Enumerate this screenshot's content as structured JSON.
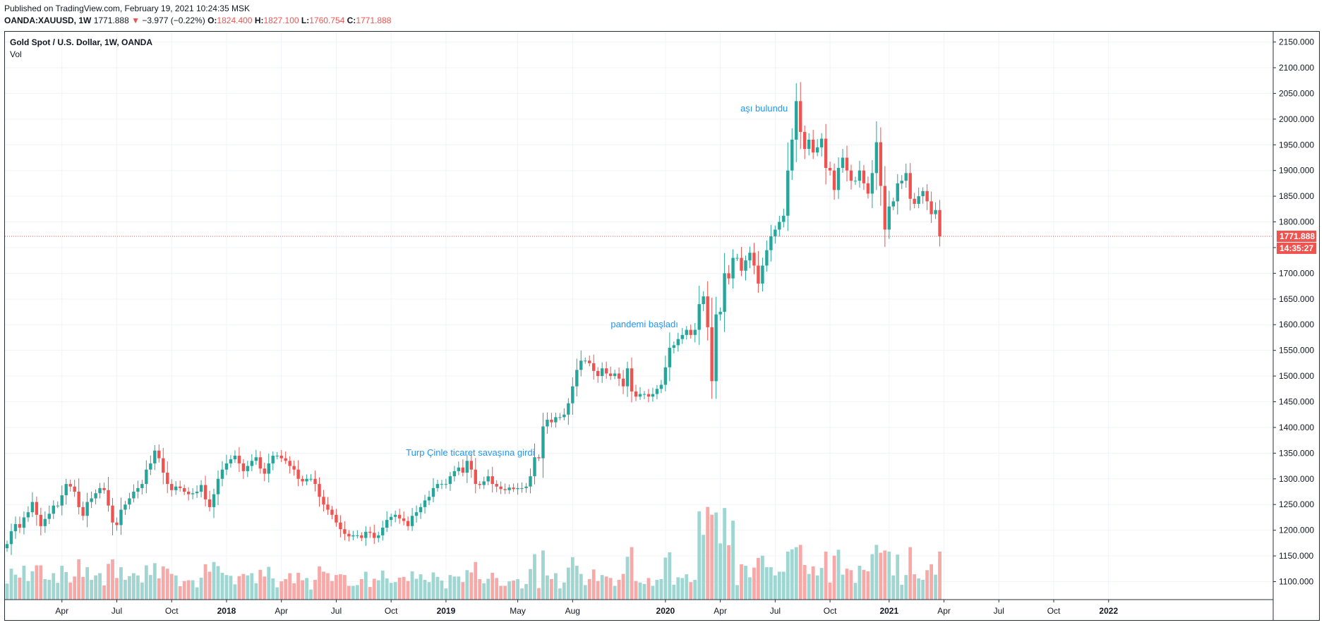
{
  "header": {
    "published": "Published on TradingView.com, February 19, 2021 10:24:35 MSK",
    "symbol": "OANDA:XAUUSD, 1W",
    "last": "1771.888",
    "change": "−3.977 (−0.22%)",
    "o_label": "O:",
    "o_value": "1824.400",
    "h_label": "H:",
    "h_value": "1827.100",
    "l_label": "L:",
    "l_value": "1760.754",
    "c_label": "C:",
    "c_value": "1771.888"
  },
  "legend": {
    "title": "Gold Spot / U.S. Dollar, 1W, OANDA",
    "indicator": "Vol"
  },
  "chart_data": {
    "type": "candlestick",
    "timeframe": "1W",
    "ylim": [
      1065,
      2170
    ],
    "y_ticks": [
      1100,
      1150,
      1200,
      1250,
      1300,
      1350,
      1400,
      1450,
      1500,
      1550,
      1600,
      1650,
      1700,
      1750,
      1800,
      1850,
      1900,
      1950,
      2000,
      2050,
      2100,
      2150
    ],
    "y_tick_labels": [
      "1100.000",
      "1150.000",
      "1200.000",
      "1250.000",
      "1300.000",
      "1350.000",
      "1400.000",
      "1450.000",
      "1500.000",
      "1550.000",
      "1600.000",
      "1650.000",
      "1700.000",
      "1750.000",
      "1800.000",
      "1850.000",
      "1900.000",
      "1950.000",
      "2000.000",
      "2050.000",
      "2100.000",
      "2150.000"
    ],
    "x_ticks": [
      {
        "label": "Apr",
        "week": 13,
        "bold": false
      },
      {
        "label": "Jul",
        "week": 26,
        "bold": false
      },
      {
        "label": "Oct",
        "week": 39,
        "bold": false
      },
      {
        "label": "2018",
        "week": 52,
        "bold": true
      },
      {
        "label": "Apr",
        "week": 65,
        "bold": false
      },
      {
        "label": "Jul",
        "week": 78,
        "bold": false
      },
      {
        "label": "Oct",
        "week": 91,
        "bold": false
      },
      {
        "label": "2019",
        "week": 104,
        "bold": true
      },
      {
        "label": "May",
        "week": 121,
        "bold": false
      },
      {
        "label": "Aug",
        "week": 134,
        "bold": false
      },
      {
        "label": "2020",
        "week": 156,
        "bold": true
      },
      {
        "label": "Apr",
        "week": 169,
        "bold": false
      },
      {
        "label": "Jul",
        "week": 182,
        "bold": false
      },
      {
        "label": "Oct",
        "week": 195,
        "bold": false
      },
      {
        "label": "2021",
        "week": 209,
        "bold": true
      },
      {
        "label": "Apr",
        "week": 222,
        "bold": false
      },
      {
        "label": "Jul",
        "week": 235,
        "bold": false
      },
      {
        "label": "Oct",
        "week": 248,
        "bold": false
      },
      {
        "label": "2022",
        "week": 261,
        "bold": true
      }
    ],
    "closes": [
      1173,
      1198,
      1212,
      1205,
      1225,
      1235,
      1255,
      1230,
      1208,
      1222,
      1232,
      1248,
      1248,
      1268,
      1290,
      1285,
      1275,
      1245,
      1228,
      1255,
      1262,
      1272,
      1282,
      1278,
      1248,
      1215,
      1210,
      1240,
      1250,
      1262,
      1275,
      1282,
      1290,
      1318,
      1330,
      1355,
      1340,
      1312,
      1290,
      1278,
      1285,
      1282,
      1275,
      1270,
      1272,
      1275,
      1288,
      1260,
      1245,
      1270,
      1300,
      1318,
      1330,
      1338,
      1345,
      1330,
      1315,
      1325,
      1335,
      1342,
      1320,
      1310,
      1330,
      1345,
      1345,
      1340,
      1335,
      1325,
      1318,
      1300,
      1295,
      1300,
      1300,
      1290,
      1265,
      1250,
      1240,
      1230,
      1215,
      1202,
      1193,
      1188,
      1190,
      1190,
      1185,
      1197,
      1195,
      1185,
      1190,
      1205,
      1220,
      1226,
      1230,
      1223,
      1218,
      1208,
      1228,
      1235,
      1245,
      1258,
      1265,
      1282,
      1290,
      1290,
      1290,
      1305,
      1315,
      1322,
      1312,
      1335,
      1318,
      1290,
      1288,
      1295,
      1305,
      1290,
      1285,
      1280,
      1278,
      1283,
      1280,
      1282,
      1282,
      1285,
      1305,
      1342,
      1340,
      1402,
      1415,
      1410,
      1420,
      1420,
      1425,
      1447,
      1480,
      1512,
      1530,
      1530,
      1525,
      1510,
      1500,
      1515,
      1505,
      1500,
      1505,
      1495,
      1480,
      1515,
      1470,
      1460,
      1465,
      1465,
      1460,
      1465,
      1475,
      1483,
      1517,
      1555,
      1560,
      1572,
      1580,
      1590,
      1580,
      1590,
      1640,
      1655,
      1595,
      1490,
      1620,
      1625,
      1700,
      1690,
      1730,
      1730,
      1705,
      1725,
      1740,
      1715,
      1680,
      1715,
      1745,
      1772,
      1785,
      1800,
      1812,
      1900,
      1960,
      2035,
      1975,
      1942,
      1960,
      1935,
      1945,
      1962,
      1905,
      1900,
      1862,
      1905,
      1925,
      1900,
      1880,
      1880,
      1900,
      1875,
      1855,
      1895,
      1955,
      1870,
      1785,
      1830,
      1840,
      1875,
      1880,
      1895,
      1845,
      1835,
      1850,
      1860,
      1840,
      1815,
      1823,
      1772
    ],
    "volume_ylim": [
      0,
      1
    ],
    "annotations": [
      {
        "text": "aşı bulundu",
        "week": 185,
        "price": 2015
      },
      {
        "text": "pandemi başladı",
        "week": 159,
        "price": 1595
      },
      {
        "text": "Turp Çinle ticaret savaşına girdi",
        "week": 125,
        "price": 1345
      }
    ],
    "last_price_label": "1771.888",
    "countdown_label": "14:35:27"
  },
  "colors": {
    "up": "#26a69a",
    "down": "#ef5350",
    "up_volume": "#9fd6d2",
    "down_volume": "#f7a9a8",
    "grid": "#f0f3fa",
    "annotation": "#2196f3"
  }
}
